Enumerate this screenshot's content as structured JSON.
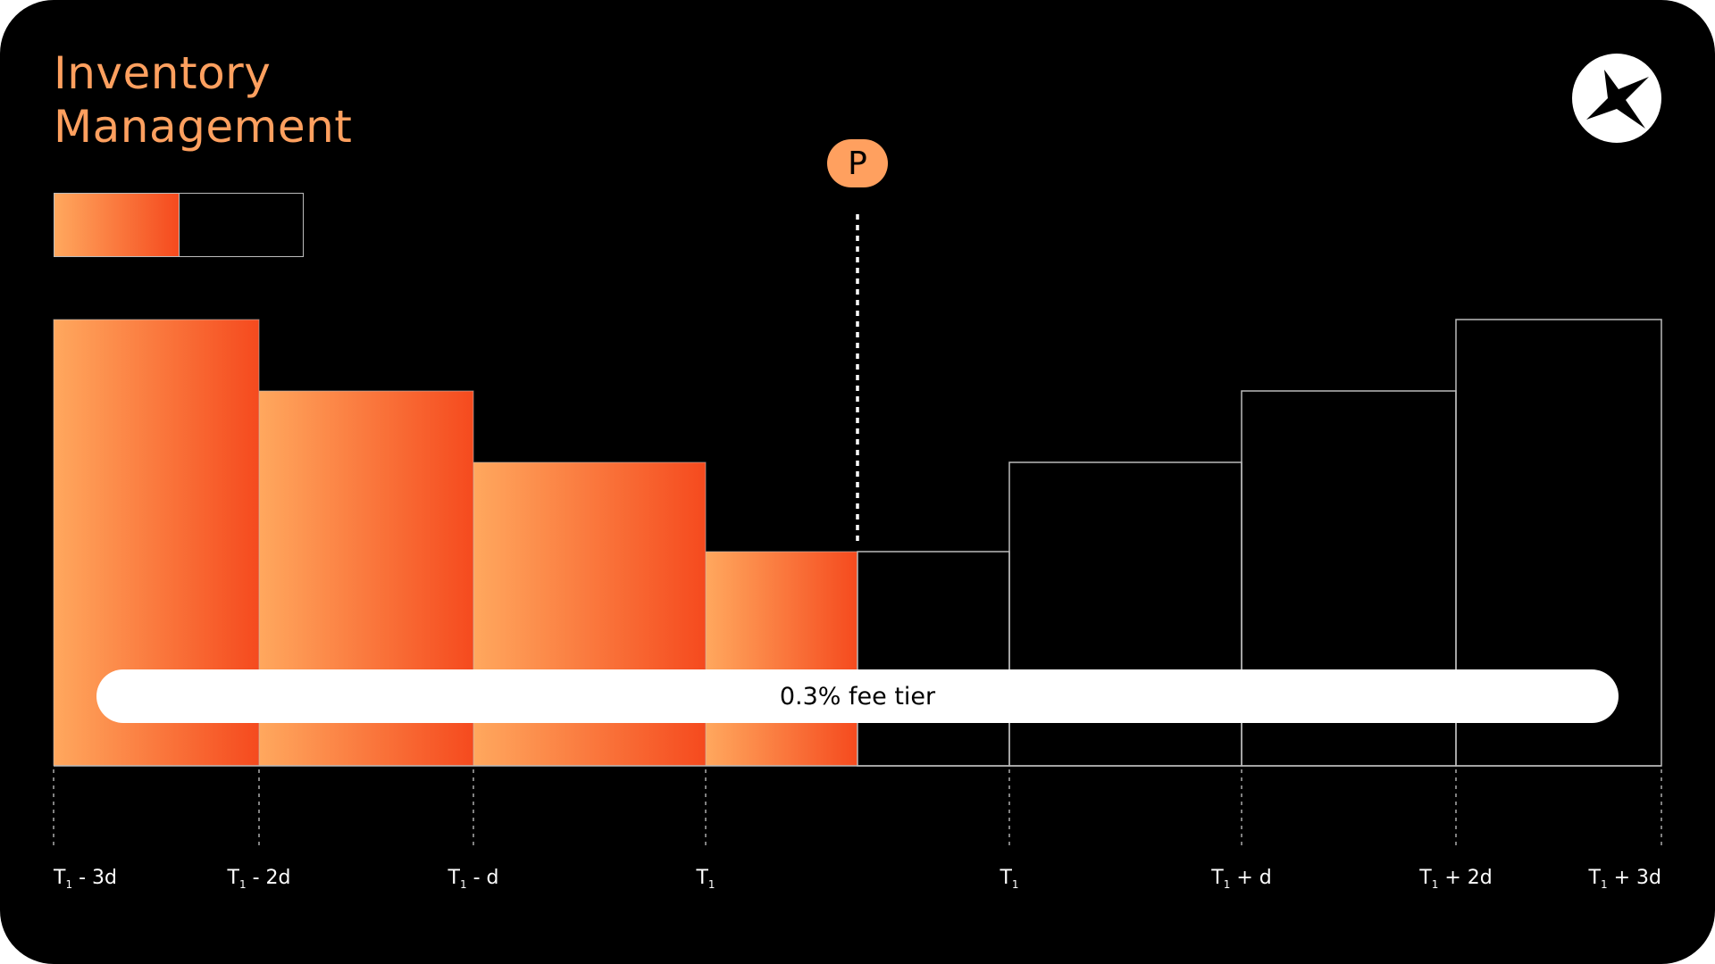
{
  "title": {
    "line1": "Inventory",
    "line2": "Management"
  },
  "colors": {
    "title": "#FFA05F",
    "gradient_start": "#FFA85E",
    "gradient_end": "#F54A1E",
    "outline": "#BBBBBB",
    "background": "#000000"
  },
  "logo": {
    "icon": "star-compass-icon"
  },
  "price_marker": {
    "label": "P"
  },
  "fee_bar": {
    "label": "0.3% fee tier"
  },
  "bars": [
    {
      "height": 5,
      "filled": 1
    },
    {
      "height": 4.2,
      "filled": 1
    },
    {
      "height": 3.4,
      "filled": 1
    },
    {
      "height": 2.4,
      "filled": 1
    },
    {
      "height": 2.4,
      "filled": 0
    },
    {
      "height": 3.4,
      "filled": 0
    },
    {
      "height": 4.2,
      "filled": 0
    },
    {
      "height": 5,
      "filled": 0
    }
  ],
  "ticks": [
    {
      "base": "T",
      "sub": "1",
      "suffix": " - 3d"
    },
    {
      "base": "T",
      "sub": "1",
      "suffix": " - 2d"
    },
    {
      "base": "T",
      "sub": "1",
      "suffix": " - d"
    },
    {
      "base": "T",
      "sub": "1",
      "suffix": ""
    },
    {
      "base": "T",
      "sub": "1",
      "suffix": ""
    },
    {
      "base": "T",
      "sub": "1",
      "suffix": " + d"
    },
    {
      "base": "T",
      "sub": "1",
      "suffix": " + 2d"
    },
    {
      "base": "T",
      "sub": "1",
      "suffix": " + 3d"
    }
  ]
}
